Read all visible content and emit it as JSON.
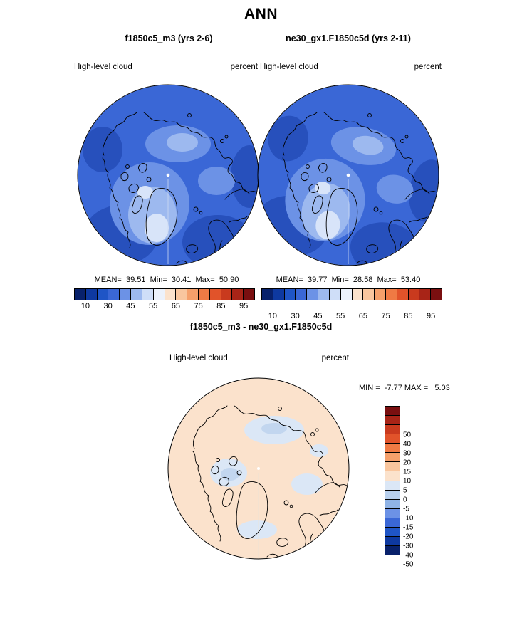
{
  "figure_title": "ANN",
  "colors": {
    "map_base": "#3a67d6",
    "map_shade1": "#6c92e6",
    "map_shade2": "#9db9ef",
    "map_shade3": "#d8e4f9",
    "map_dark1": "#2750bc",
    "diff_base": "#fbe2cc",
    "diff_blue1": "#dbe7f6",
    "diff_blue2": "#c2d6ef",
    "coastline": "#000000"
  },
  "top_row": {
    "panels": [
      {
        "title": "f1850c5_m3 (yrs 2-6)",
        "variable": "High-level cloud",
        "units": "percent",
        "stats_text": "MEAN=  39.51  Min=  30.41  Max=  50.90"
      },
      {
        "title": "ne30_gx1.F1850c5d (yrs 2-11)",
        "variable": "High-level cloud",
        "units": "percent",
        "stats_text": "MEAN=  39.77  Min=  28.58  Max=  53.40"
      }
    ],
    "colorbar": {
      "colors": [
        "#08216b",
        "#0e39a0",
        "#1f55c6",
        "#3a67d6",
        "#6c92e6",
        "#9db9ef",
        "#cfdef8",
        "#ecf2fc",
        "#fbe2cc",
        "#f9c69e",
        "#f5a06b",
        "#ef7a44",
        "#e1532a",
        "#c93a1e",
        "#a82417",
        "#7a0f10"
      ],
      "tick_labels": [
        "10",
        "30",
        "45",
        "55",
        "65",
        "75",
        "85",
        "95"
      ]
    }
  },
  "diff_row": {
    "title": "f1850c5_m3 - ne30_gx1.F1850c5d",
    "variable": "High-level cloud",
    "units": "percent",
    "minmax_text": "MIN =  -7.77 MAX =   5.03",
    "colorbar": {
      "colors": [
        "#7a0f10",
        "#a82417",
        "#c93a1e",
        "#e1532a",
        "#ef7a44",
        "#f5a06b",
        "#f9c69e",
        "#fbe2cc",
        "#dbe7f6",
        "#b8d0ee",
        "#8fb3e6",
        "#6c92e6",
        "#3a67d6",
        "#1f55c6",
        "#0e39a0",
        "#08216b"
      ],
      "tick_labels": [
        "50",
        "40",
        "30",
        "20",
        "15",
        "10",
        "5",
        "0",
        "-5",
        "-10",
        "-15",
        "-20",
        "-30",
        "-40",
        "-50"
      ]
    }
  },
  "chart_data": [
    {
      "type": "heatmap",
      "projection": "north-polar-stereographic",
      "season": "ANN",
      "title": "f1850c5_m3 (yrs 2-6)",
      "variable": "High-level cloud",
      "units": "percent",
      "mean": 39.51,
      "min": 30.41,
      "max": 50.9,
      "colorbar_ticks": [
        10,
        30,
        45,
        55,
        65,
        75,
        85,
        95
      ],
      "legend_position": "below"
    },
    {
      "type": "heatmap",
      "projection": "north-polar-stereographic",
      "season": "ANN",
      "title": "ne30_gx1.F1850c5d (yrs 2-11)",
      "variable": "High-level cloud",
      "units": "percent",
      "mean": 39.77,
      "min": 28.58,
      "max": 53.4,
      "colorbar_ticks": [
        10,
        30,
        45,
        55,
        65,
        75,
        85,
        95
      ],
      "legend_position": "below"
    },
    {
      "type": "heatmap",
      "projection": "north-polar-stereographic",
      "season": "ANN",
      "title": "f1850c5_m3 - ne30_gx1.F1850c5d",
      "variable": "High-level cloud",
      "units": "percent",
      "min": -7.77,
      "max": 5.03,
      "colorbar_ticks": [
        50,
        40,
        30,
        20,
        15,
        10,
        5,
        0,
        -5,
        -10,
        -15,
        -20,
        -30,
        -40,
        -50
      ],
      "legend_position": "right"
    }
  ]
}
